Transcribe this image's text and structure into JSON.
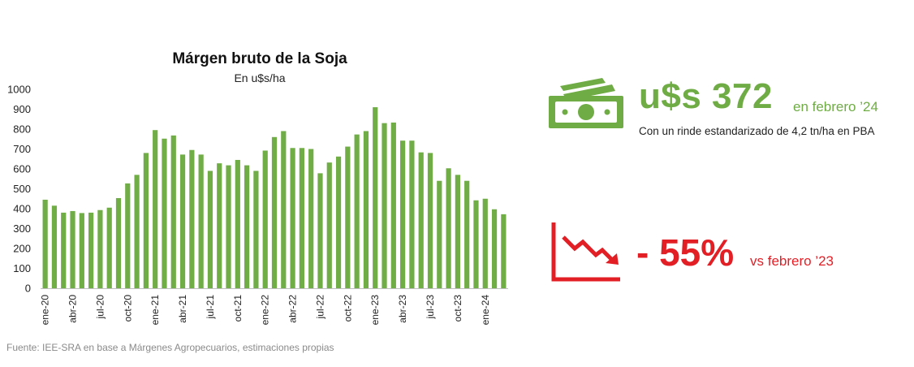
{
  "chart_data": {
    "type": "bar",
    "title": "Márgen bruto de la Soja",
    "subtitle": "En u$s/ha",
    "ylim": [
      0,
      1000
    ],
    "yticks": [
      0,
      100,
      200,
      300,
      400,
      500,
      600,
      700,
      800,
      900,
      1000
    ],
    "xtick_labels": [
      "ene-20",
      "abr-20",
      "jul-20",
      "oct-20",
      "ene-21",
      "abr-21",
      "jul-21",
      "oct-21",
      "ene-22",
      "abr-22",
      "jul-22",
      "oct-22",
      "ene-23",
      "abr-23",
      "jul-23",
      "oct-23",
      "ene-24"
    ],
    "xtick_every": 3,
    "color": "#70ad47",
    "grid": false,
    "values": [
      445,
      415,
      380,
      388,
      378,
      380,
      393,
      405,
      453,
      527,
      570,
      680,
      795,
      752,
      768,
      672,
      695,
      672,
      590,
      628,
      618,
      645,
      618,
      590,
      692,
      760,
      790,
      705,
      705,
      700,
      578,
      632,
      662,
      712,
      773,
      790,
      910,
      830,
      833,
      742,
      742,
      683,
      680,
      540,
      603,
      570,
      540,
      442,
      450,
      397,
      372
    ]
  },
  "kpi_price": {
    "value": "u$s 372",
    "period": "en febrero ’24",
    "note": "Con un rinde estandarizado de 4,2 tn/ha en PBA",
    "color": "#6fac46",
    "icon": "money-icon"
  },
  "kpi_change": {
    "value": "- 55%",
    "period": "vs febrero ’23",
    "color": "#e31f26",
    "icon": "trend-down-icon"
  },
  "source": "Fuente: IEE-SRA en base a Márgenes Agropecuarios, estimaciones propias"
}
